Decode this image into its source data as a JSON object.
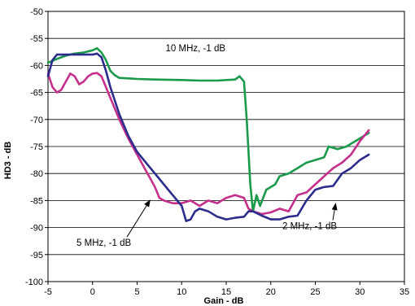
{
  "chart_data": {
    "type": "line",
    "xlabel": "Gain - dB",
    "ylabel": "HD3 - dB",
    "xlim": [
      -5,
      35
    ],
    "ylim": [
      -100,
      -50
    ],
    "xticks": [
      -5,
      0,
      5,
      10,
      15,
      20,
      25,
      30,
      35
    ],
    "yticks": [
      -50,
      -55,
      -60,
      -65,
      -70,
      -75,
      -80,
      -85,
      -90,
      -95,
      -100
    ],
    "grid": "horizontal",
    "colors": {
      "green": "#1a9a4a",
      "magenta": "#c4308c",
      "blue": "#2c2c8c"
    },
    "series": [
      {
        "name": "10 MHz, -1 dB",
        "color": "#1a9a4a",
        "points": [
          [
            -5,
            -59.5
          ],
          [
            -4,
            -58.8
          ],
          [
            -3,
            -58.2
          ],
          [
            -2,
            -57.8
          ],
          [
            -1,
            -57.6
          ],
          [
            0,
            -57.2
          ],
          [
            0.5,
            -56.8
          ],
          [
            1,
            -57.6
          ],
          [
            1.5,
            -59
          ],
          [
            2,
            -61
          ],
          [
            2.5,
            -61.8
          ],
          [
            3,
            -62.3
          ],
          [
            4,
            -62.4
          ],
          [
            5,
            -62.5
          ],
          [
            7,
            -62.6
          ],
          [
            10,
            -62.7
          ],
          [
            12,
            -62.8
          ],
          [
            14,
            -62.8
          ],
          [
            16,
            -62.6
          ],
          [
            16.5,
            -62
          ],
          [
            17,
            -63
          ],
          [
            17.3,
            -70
          ],
          [
            17.7,
            -82
          ],
          [
            18,
            -87
          ],
          [
            18.4,
            -84
          ],
          [
            18.8,
            -86
          ],
          [
            19.5,
            -83
          ],
          [
            20.5,
            -82
          ],
          [
            21,
            -80.5
          ],
          [
            22,
            -80
          ],
          [
            23,
            -79
          ],
          [
            24,
            -78
          ],
          [
            25,
            -77.5
          ],
          [
            26,
            -77
          ],
          [
            26.5,
            -75
          ],
          [
            27.5,
            -75.5
          ],
          [
            28.5,
            -75
          ],
          [
            29.5,
            -74
          ],
          [
            30.5,
            -73
          ],
          [
            31,
            -72.5
          ]
        ]
      },
      {
        "name": "5 MHz, -1 dB",
        "color": "#c4308c",
        "points": [
          [
            -5,
            -61.5
          ],
          [
            -4.5,
            -64
          ],
          [
            -4,
            -65
          ],
          [
            -3.5,
            -64.5
          ],
          [
            -3,
            -63
          ],
          [
            -2.5,
            -61.5
          ],
          [
            -2,
            -62
          ],
          [
            -1.5,
            -63.5
          ],
          [
            -1,
            -63
          ],
          [
            -0.5,
            -62
          ],
          [
            0,
            -61.5
          ],
          [
            0.5,
            -61.4
          ],
          [
            1,
            -62
          ],
          [
            1.5,
            -64
          ],
          [
            2,
            -66
          ],
          [
            3,
            -70
          ],
          [
            4,
            -73.5
          ],
          [
            5,
            -76.5
          ],
          [
            6,
            -79.5
          ],
          [
            6.5,
            -81
          ],
          [
            7,
            -82.5
          ],
          [
            7.5,
            -84.5
          ],
          [
            8,
            -85
          ],
          [
            9,
            -85.5
          ],
          [
            10,
            -85.5
          ],
          [
            11,
            -85
          ],
          [
            12,
            -86
          ],
          [
            13,
            -85
          ],
          [
            14,
            -85.5
          ],
          [
            15,
            -84.5
          ],
          [
            16,
            -84
          ],
          [
            17,
            -84.5
          ],
          [
            17.5,
            -86.5
          ],
          [
            18,
            -87
          ],
          [
            19,
            -87.5
          ],
          [
            20,
            -87.2
          ],
          [
            21,
            -86.5
          ],
          [
            22,
            -87
          ],
          [
            23,
            -84
          ],
          [
            24,
            -83.5
          ],
          [
            25,
            -82
          ],
          [
            26,
            -80.5
          ],
          [
            27,
            -79
          ],
          [
            28,
            -78
          ],
          [
            29,
            -76.5
          ],
          [
            30,
            -74
          ],
          [
            31,
            -72
          ]
        ]
      },
      {
        "name": "2 MHz, -1 dB",
        "color": "#2c2c8c",
        "points": [
          [
            -5,
            -62
          ],
          [
            -4.5,
            -59
          ],
          [
            -4,
            -58
          ],
          [
            -3,
            -58
          ],
          [
            -2,
            -58
          ],
          [
            -1,
            -58
          ],
          [
            0,
            -58
          ],
          [
            0.5,
            -57.8
          ],
          [
            1,
            -58.5
          ],
          [
            1.5,
            -61
          ],
          [
            2,
            -64
          ],
          [
            3,
            -69
          ],
          [
            4,
            -73
          ],
          [
            5,
            -76
          ],
          [
            6,
            -78
          ],
          [
            7,
            -80
          ],
          [
            8,
            -82
          ],
          [
            9,
            -84
          ],
          [
            10,
            -86
          ],
          [
            10.5,
            -88.8
          ],
          [
            11,
            -88.5
          ],
          [
            11.5,
            -87
          ],
          [
            12,
            -86.5
          ],
          [
            13,
            -87
          ],
          [
            14,
            -88
          ],
          [
            15,
            -88.5
          ],
          [
            16,
            -88.2
          ],
          [
            17,
            -88
          ],
          [
            17.5,
            -87
          ],
          [
            18,
            -87
          ],
          [
            19,
            -87.8
          ],
          [
            20,
            -88.5
          ],
          [
            21,
            -88.5
          ],
          [
            22,
            -88
          ],
          [
            23,
            -87.8
          ],
          [
            24,
            -85
          ],
          [
            25,
            -83
          ],
          [
            26,
            -82.5
          ],
          [
            27,
            -82.3
          ],
          [
            28,
            -80
          ],
          [
            29,
            -79
          ],
          [
            30,
            -77.5
          ],
          [
            31,
            -76.5
          ]
        ]
      }
    ],
    "annotations": [
      {
        "text": "10 MHz, -1 dB",
        "x": 8.2,
        "y": -57.4
      },
      {
        "text": "5 MHz, -1 dB",
        "x": -1.8,
        "y": -93.4,
        "arrow_to": [
          6.5,
          -84.8
        ]
      },
      {
        "text": "2 MHz, -1 dB",
        "x": 21.3,
        "y": -90.3,
        "arrow_to": [
          27.3,
          -85.4
        ]
      }
    ]
  }
}
